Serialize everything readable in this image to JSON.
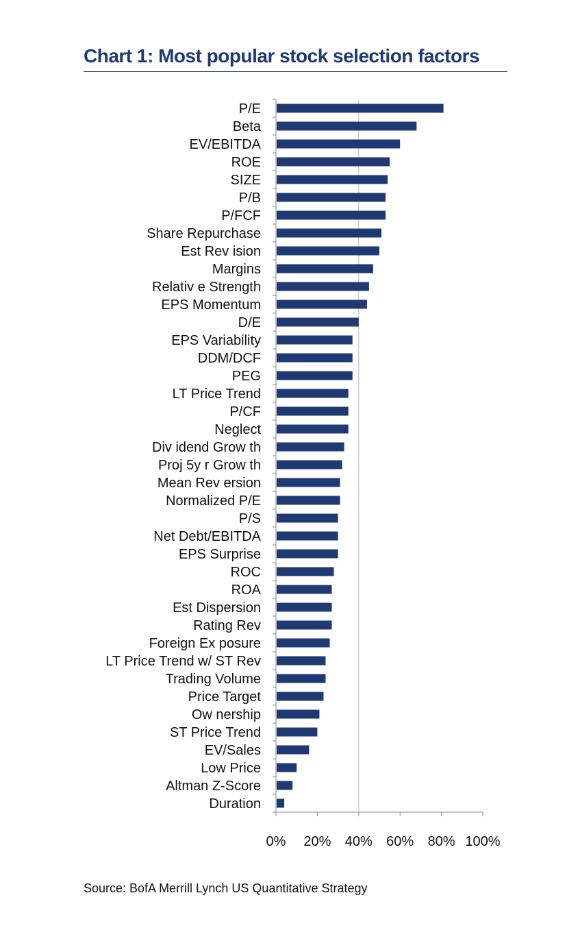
{
  "title": "Chart 1: Most popular stock selection factors",
  "source": "Source: BofA Merrill Lynch US Quantitative Strategy",
  "colors": {
    "bar": "#1f3a73",
    "title": "#1f3a73",
    "axis": "#888888",
    "gridline": "#bbbbbb"
  },
  "chart_data": {
    "type": "bar",
    "orientation": "horizontal",
    "title": "Chart 1: Most popular stock selection factors",
    "xlabel": "",
    "ylabel": "",
    "xlim": [
      0,
      100
    ],
    "x_ticks": [
      "0%",
      "20%",
      "40%",
      "60%",
      "80%",
      "100%"
    ],
    "grid": "vertical line at 40%",
    "legend": "none",
    "categories": [
      "P/E",
      "Beta",
      "EV/EBITDA",
      "ROE",
      "SIZE",
      "P/B",
      "P/FCF",
      "Share Repurchase",
      "Est Rev ision",
      "Margins",
      "Relativ e Strength",
      "EPS Momentum",
      "D/E",
      "EPS Variability",
      "DDM/DCF",
      "PEG",
      "LT Price Trend",
      "P/CF",
      "Neglect",
      "Div idend Grow th",
      "Proj 5y r Grow th",
      "Mean Rev ersion",
      "Normalized P/E",
      "P/S",
      "Net Debt/EBITDA",
      "EPS Surprise",
      "ROC",
      "ROA",
      "Est Dispersion",
      "Rating Rev",
      "Foreign Ex posure",
      "LT Price Trend w/ ST Rev",
      "Trading Volume",
      "Price Target",
      "Ow nership",
      "ST Price Trend",
      "EV/Sales",
      "Low Price",
      "Altman Z-Score",
      "Duration"
    ],
    "values": [
      81,
      68,
      60,
      55,
      54,
      53,
      53,
      51,
      50,
      47,
      45,
      44,
      40,
      37,
      37,
      37,
      35,
      35,
      35,
      33,
      32,
      31,
      31,
      30,
      30,
      30,
      28,
      27,
      27,
      27,
      26,
      24,
      24,
      23,
      21,
      20,
      16,
      10,
      8,
      4
    ]
  }
}
